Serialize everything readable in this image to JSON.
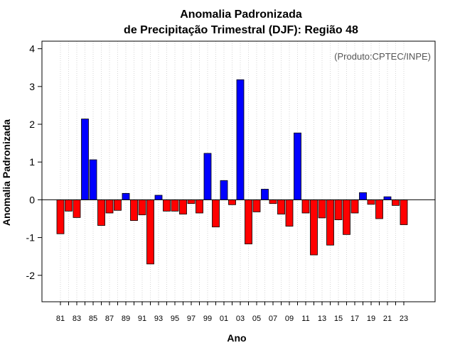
{
  "chart_data": {
    "type": "bar",
    "title": [
      "Anomalia Padronizada",
      "de Precipitação Trimestral (DJF): Região 48"
    ],
    "xlabel": "Ano",
    "ylabel": "Anomalia Padronizada",
    "annotation": "(Produto:CPTEC/INPE)",
    "ylim": [
      -2.7,
      4.2
    ],
    "yticks": [
      -2,
      -1,
      0,
      1,
      2,
      3,
      4
    ],
    "x_tick_labels": [
      "81",
      "83",
      "85",
      "87",
      "89",
      "91",
      "93",
      "95",
      "97",
      "99",
      "01",
      "03",
      "05",
      "07",
      "09",
      "11",
      "13",
      "15",
      "17",
      "19",
      "21",
      "23"
    ],
    "categories": [
      "81",
      "82",
      "83",
      "84",
      "85",
      "86",
      "87",
      "88",
      "89",
      "90",
      "91",
      "92",
      "93",
      "94",
      "95",
      "96",
      "97",
      "98",
      "99",
      "00",
      "01",
      "02",
      "03",
      "04",
      "05",
      "06",
      "07",
      "08",
      "09",
      "10",
      "11",
      "12",
      "13",
      "14",
      "15",
      "16",
      "17",
      "18",
      "19",
      "20",
      "21",
      "22",
      "23"
    ],
    "values": [
      -0.9,
      -0.3,
      -0.47,
      2.14,
      1.06,
      -0.68,
      -0.35,
      -0.28,
      0.17,
      -0.55,
      -0.4,
      -1.7,
      0.12,
      -0.3,
      -0.3,
      -0.38,
      -0.1,
      -0.35,
      1.23,
      -0.72,
      0.51,
      -0.13,
      3.18,
      -1.17,
      -0.32,
      0.28,
      -0.1,
      -0.38,
      -0.7,
      1.77,
      -0.35,
      -1.46,
      -0.48,
      -1.2,
      -0.53,
      -0.92,
      -0.35,
      0.19,
      -0.12,
      -0.5,
      0.08,
      -0.15,
      -0.66
    ],
    "colors": {
      "positive": "#0000ff",
      "negative": "#ff0000",
      "outline": "#000000",
      "grid": "#cccccc"
    },
    "grid": "vertical dotted"
  }
}
